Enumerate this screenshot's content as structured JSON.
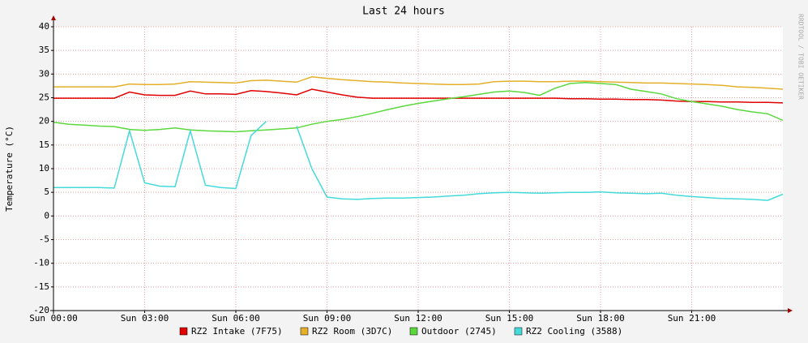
{
  "chart_data": {
    "type": "line",
    "title": "Last 24 hours",
    "y_label": "Temperature (°C)",
    "watermark": "RRDTOOL / TOBI OETIKER",
    "x": [
      0,
      0.5,
      1,
      1.5,
      2,
      2.5,
      3,
      3.5,
      4,
      4.5,
      5,
      5.5,
      6,
      6.5,
      7,
      7.5,
      8,
      8.5,
      9,
      9.5,
      10,
      10.5,
      11,
      11.5,
      12,
      12.5,
      13,
      13.5,
      14,
      14.5,
      15,
      15.5,
      16,
      16.5,
      17,
      17.5,
      18,
      18.5,
      19,
      19.5,
      20,
      20.5,
      21,
      21.5,
      22,
      22.5,
      23,
      23.5,
      24
    ],
    "xlim": [
      0,
      24
    ],
    "xticks": [
      {
        "value": 0,
        "label": "Sun 00:00"
      },
      {
        "value": 3,
        "label": "Sun 03:00"
      },
      {
        "value": 6,
        "label": "Sun 06:00"
      },
      {
        "value": 9,
        "label": "Sun 09:00"
      },
      {
        "value": 12,
        "label": "Sun 12:00"
      },
      {
        "value": 15,
        "label": "Sun 15:00"
      },
      {
        "value": 18,
        "label": "Sun 18:00"
      },
      {
        "value": 21,
        "label": "Sun 21:00"
      }
    ],
    "ylim": [
      -20,
      40
    ],
    "yticks": [
      -20,
      -15,
      -10,
      -5,
      0,
      5,
      10,
      15,
      20,
      25,
      30,
      35,
      40
    ],
    "grid": true,
    "series": [
      {
        "name": "RZ2 Intake (7F75)",
        "color": "#e00000",
        "values": [
          24.9,
          24.9,
          24.9,
          24.9,
          24.9,
          26.2,
          25.6,
          25.5,
          25.5,
          26.4,
          25.8,
          25.8,
          25.7,
          26.5,
          26.3,
          26,
          25.6,
          26.8,
          26.2,
          25.6,
          25.1,
          24.9,
          24.9,
          24.9,
          24.9,
          24.9,
          24.9,
          24.9,
          24.9,
          24.9,
          24.9,
          24.9,
          24.9,
          24.9,
          24.8,
          24.8,
          24.7,
          24.7,
          24.6,
          24.6,
          24.5,
          24.3,
          24.2,
          24.2,
          24.1,
          24.1,
          24,
          24,
          23.9
        ]
      },
      {
        "name": "RZ2 Room (3D7C)",
        "color": "#e4b02a",
        "values": [
          27.3,
          27.3,
          27.3,
          27.3,
          27.3,
          27.9,
          27.8,
          27.8,
          27.9,
          28.4,
          28.3,
          28.2,
          28.1,
          28.6,
          28.7,
          28.5,
          28.3,
          29.4,
          29.1,
          28.8,
          28.6,
          28.4,
          28.3,
          28.1,
          28,
          27.9,
          27.8,
          27.8,
          27.9,
          28.4,
          28.5,
          28.5,
          28.4,
          28.4,
          28.5,
          28.5,
          28.4,
          28.3,
          28.2,
          28.1,
          28.1,
          28,
          27.9,
          27.8,
          27.6,
          27.3,
          27.2,
          27,
          26.8
        ]
      },
      {
        "name": "Outdoor (2745)",
        "color": "#5ad83c",
        "values": [
          19.8,
          19.4,
          19.2,
          19,
          18.9,
          18.3,
          18.1,
          18.3,
          18.6,
          18.2,
          18,
          17.9,
          17.8,
          18,
          18.2,
          18.4,
          18.6,
          19.4,
          20,
          20.4,
          21,
          21.7,
          22.5,
          23.2,
          23.8,
          24.3,
          24.8,
          25.2,
          25.7,
          26.2,
          26.4,
          26.1,
          25.5,
          27,
          28,
          28.2,
          28,
          27.8,
          26.8,
          26.3,
          25.8,
          24.8,
          24.2,
          23.7,
          23.2,
          22.5,
          22,
          21.6,
          20.2
        ]
      },
      {
        "name": "RZ2 Cooling (3588)",
        "color": "#45dada",
        "values": [
          6,
          6,
          6,
          6,
          5.9,
          18,
          7,
          6.3,
          6.2,
          18,
          6.5,
          6,
          5.8,
          17,
          20,
          null,
          19,
          10,
          4,
          3.6,
          3.5,
          3.7,
          3.8,
          3.8,
          3.9,
          4,
          4.2,
          4.4,
          4.7,
          4.9,
          5,
          4.9,
          4.8,
          4.9,
          5,
          5,
          5.1,
          4.9,
          4.8,
          4.7,
          4.8,
          4.4,
          4.1,
          3.9,
          3.7,
          3.6,
          3.5,
          3.3,
          4.6
        ]
      }
    ]
  }
}
